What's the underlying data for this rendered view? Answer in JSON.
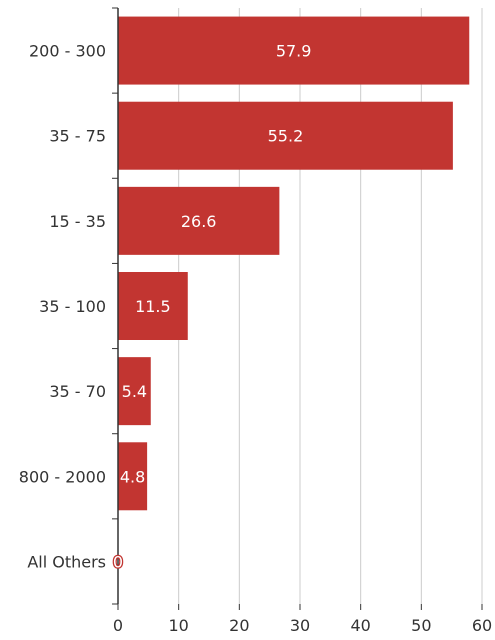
{
  "chart_data": {
    "type": "bar",
    "orientation": "horizontal",
    "categories": [
      "200 - 300",
      "35 - 75",
      "15 - 35",
      "35 - 100",
      "35 - 70",
      "800 - 2000",
      "All Others"
    ],
    "values": [
      57.9,
      55.2,
      26.6,
      11.5,
      5.4,
      4.8,
      0
    ],
    "data_labels": [
      "57.9",
      "55.2",
      "26.6",
      "11.5",
      "5.4",
      "4.8",
      "0"
    ],
    "x_ticks": [
      "0",
      "10",
      "20",
      "30",
      "40",
      "50",
      "60"
    ],
    "xlim": [
      0,
      60
    ],
    "grid": "vertical",
    "bar_color": "#c23531",
    "title": "",
    "xlabel": "",
    "ylabel": ""
  }
}
